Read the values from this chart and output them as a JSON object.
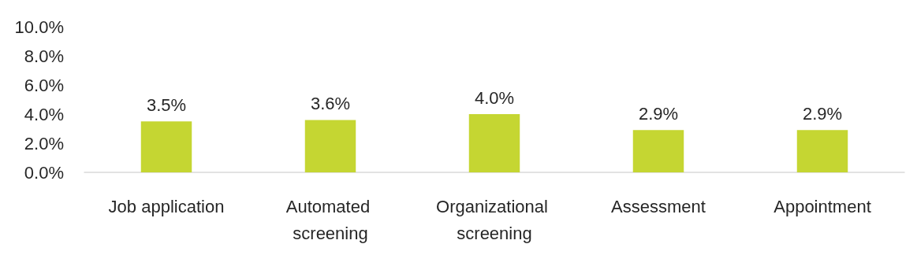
{
  "chart_data": {
    "type": "bar",
    "categories": [
      "Job application",
      "Automated screening",
      "Organizational screening",
      "Assessment",
      "Appointment"
    ],
    "values": [
      3.5,
      3.6,
      4.0,
      2.9,
      2.9
    ],
    "value_labels": [
      "3.5%",
      "3.6%",
      "4.0%",
      "2.9%",
      "2.9%"
    ],
    "color": "#c5d632",
    "ylim": [
      0,
      10
    ],
    "yticks": [
      {
        "value": 0,
        "label": "0.0%"
      },
      {
        "value": 2,
        "label": "2.0%"
      },
      {
        "value": 4,
        "label": "4.0%"
      },
      {
        "value": 6,
        "label": "6.0%"
      },
      {
        "value": 8,
        "label": "8.0%"
      },
      {
        "value": 10,
        "label": "10.0%"
      }
    ],
    "grid": false
  }
}
